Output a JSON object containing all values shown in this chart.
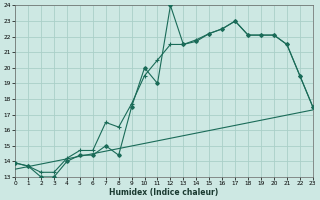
{
  "xlabel": "Humidex (Indice chaleur)",
  "bg_color": "#cde8e3",
  "grid_color": "#aacfc8",
  "line_color": "#1a6b58",
  "xlim": [
    0,
    23
  ],
  "ylim": [
    13,
    24
  ],
  "xticks": [
    0,
    1,
    2,
    3,
    4,
    5,
    6,
    7,
    8,
    9,
    10,
    11,
    12,
    13,
    14,
    15,
    16,
    17,
    18,
    19,
    20,
    21,
    22,
    23
  ],
  "yticks": [
    13,
    14,
    15,
    16,
    17,
    18,
    19,
    20,
    21,
    22,
    23,
    24
  ],
  "line1_x": [
    0,
    1,
    2,
    3,
    4,
    5,
    6,
    7,
    8,
    9,
    10,
    11,
    12,
    13,
    14,
    15,
    16,
    17,
    18,
    19,
    20,
    21,
    22,
    23
  ],
  "line1_y": [
    13.9,
    13.7,
    13.0,
    13.0,
    14.0,
    14.4,
    14.4,
    15.0,
    14.4,
    17.5,
    20.0,
    19.0,
    24.0,
    21.5,
    21.7,
    22.2,
    22.5,
    23.0,
    22.1,
    22.1,
    22.1,
    21.5,
    19.5,
    17.5
  ],
  "line2_x": [
    0,
    1,
    2,
    3,
    4,
    5,
    6,
    7,
    8,
    9,
    10,
    11,
    12,
    13,
    14,
    15,
    16,
    17,
    18,
    19,
    20,
    21,
    22,
    23
  ],
  "line2_y": [
    13.9,
    13.7,
    13.3,
    13.3,
    14.2,
    14.7,
    14.7,
    16.5,
    16.2,
    17.7,
    19.5,
    20.5,
    21.5,
    21.5,
    21.8,
    22.2,
    22.5,
    23.0,
    22.1,
    22.1,
    22.1,
    21.5,
    19.5,
    17.5
  ],
  "line3_x": [
    0,
    23
  ],
  "line3_y": [
    13.5,
    17.3
  ]
}
